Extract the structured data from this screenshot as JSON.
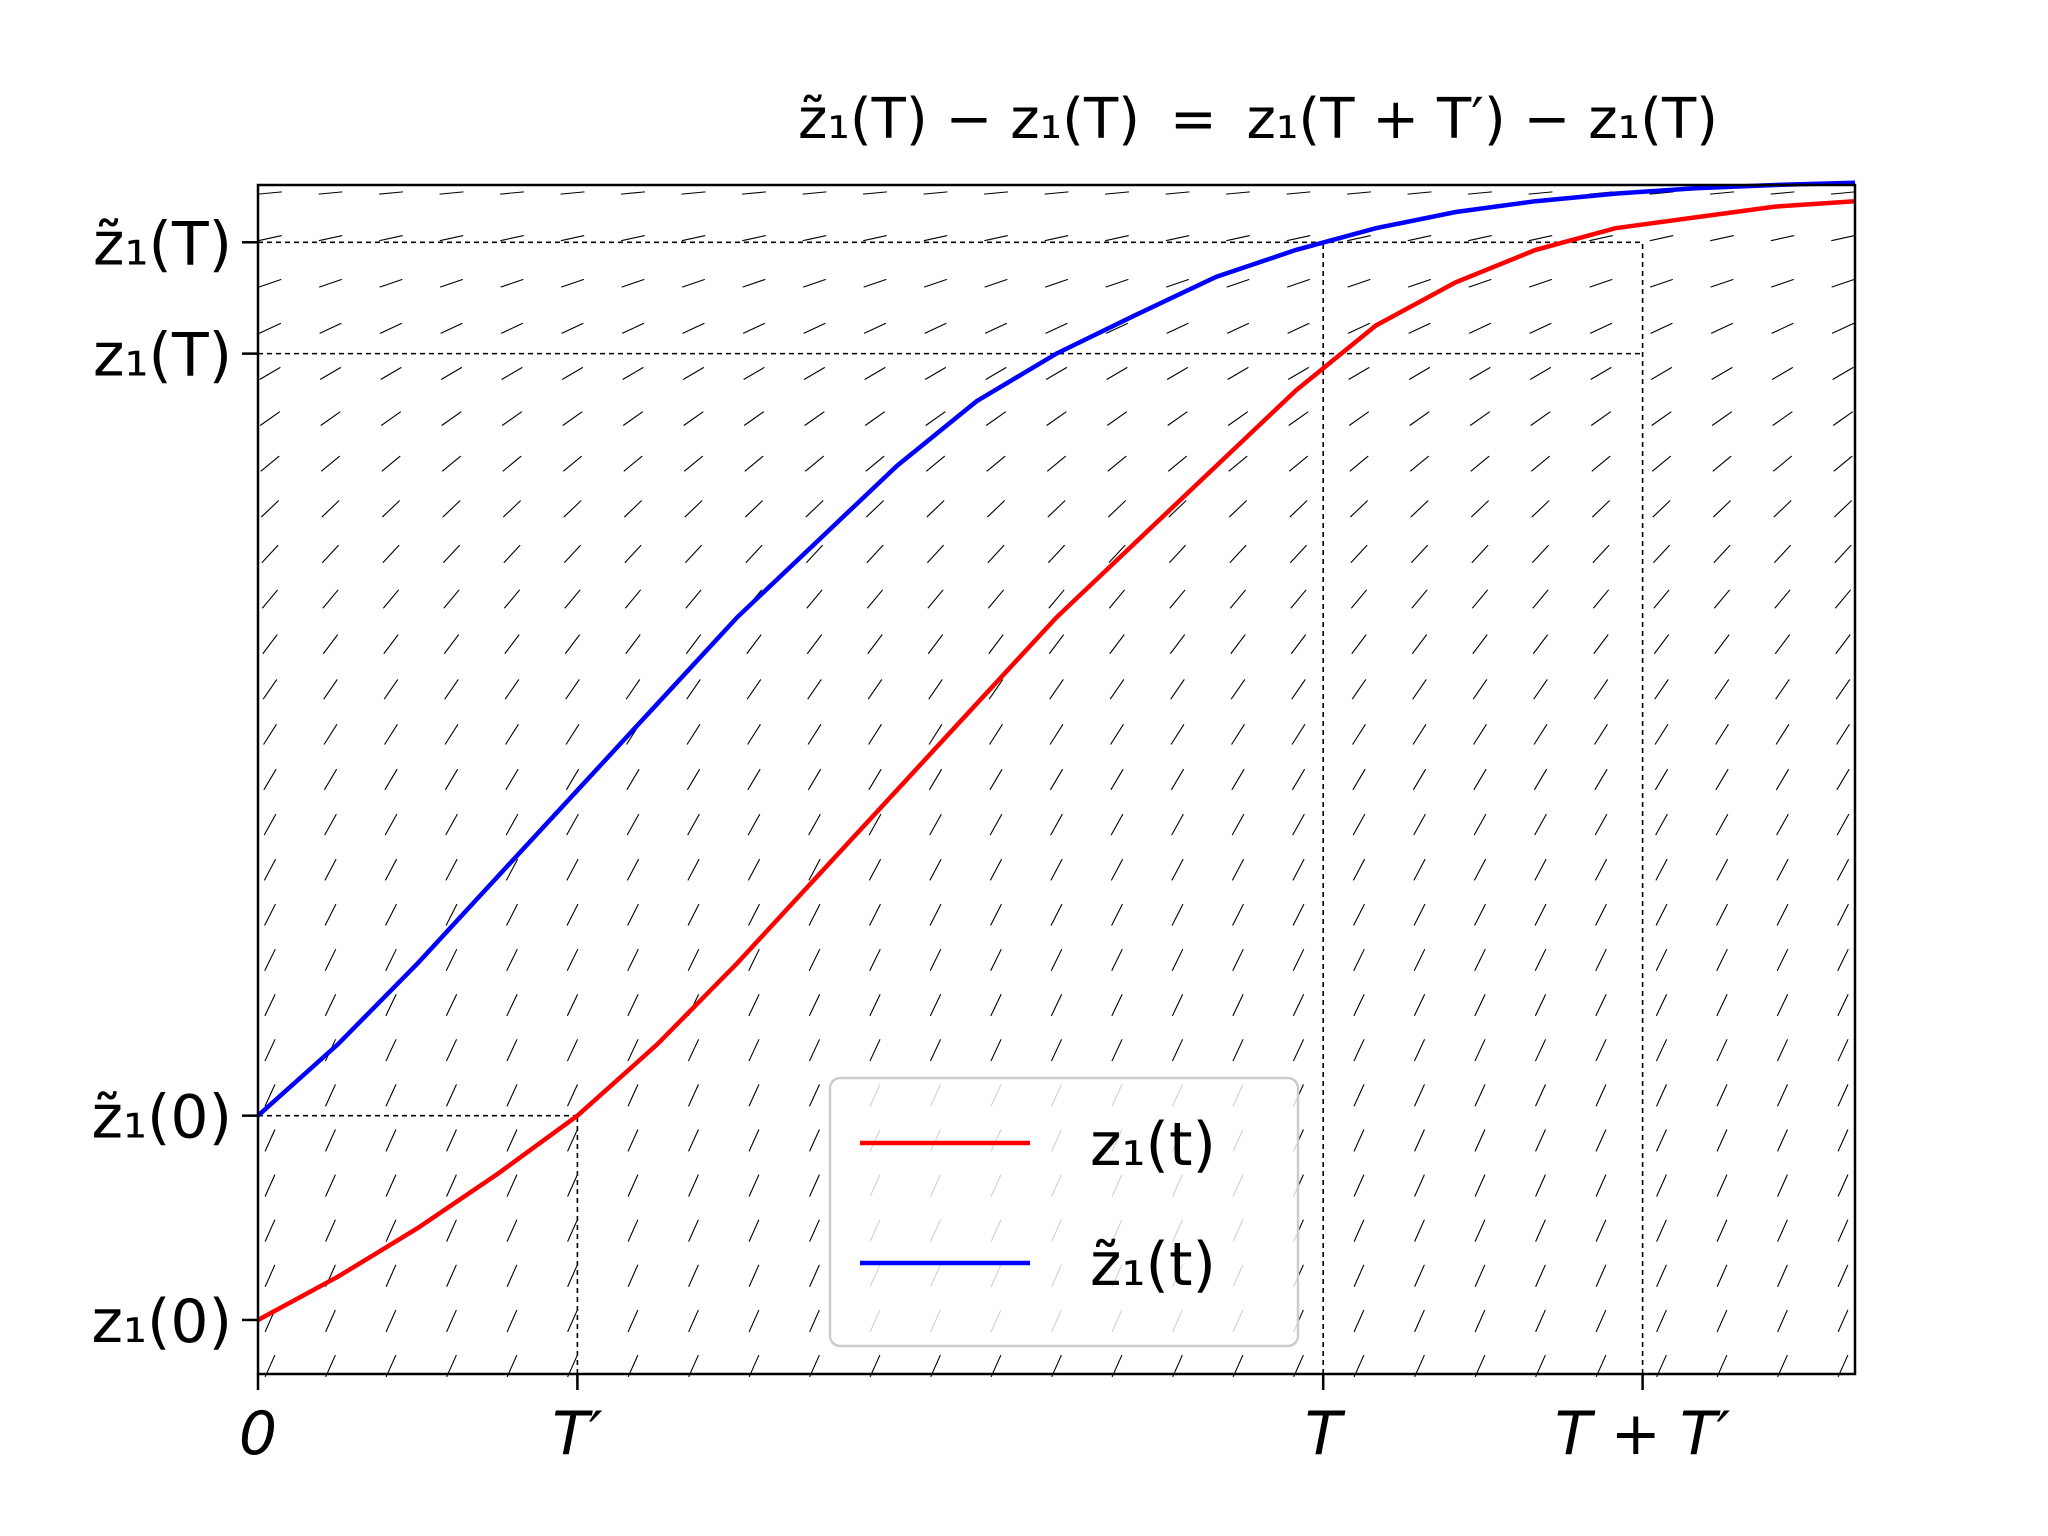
{
  "chart_data": {
    "type": "line",
    "title": "z̃₁(T) − z₁(T) = z₁(T + T′) − z₁(T)",
    "title_parts": {
      "lhs": "z̃₁(T) − z₁(T)",
      "equals": "=",
      "rhs": "z₁(T + T′) − z₁(T)"
    },
    "xlabel": "",
    "ylabel": "",
    "xlim": [
      0,
      1.0
    ],
    "ylim": [
      -0.05,
      1.05
    ],
    "x_ticks": [
      {
        "value": 0.0,
        "label": "0"
      },
      {
        "value": 0.2,
        "label": "T′"
      },
      {
        "value": 0.667,
        "label": "T"
      },
      {
        "value": 0.867,
        "label": "T + T′"
      }
    ],
    "y_ticks": [
      {
        "value": 0.0,
        "label": "z₁(0)"
      },
      {
        "value": 0.189,
        "label": "z̃₁(0)"
      },
      {
        "value": 0.894,
        "label": "z₁(T)"
      },
      {
        "value": 0.997,
        "label": "z̃₁(T)"
      }
    ],
    "series": [
      {
        "name": "z₁(t)",
        "color": "#ff0000",
        "x": [
          0.0,
          0.05,
          0.1,
          0.15,
          0.2,
          0.25,
          0.3,
          0.35,
          0.4,
          0.45,
          0.5,
          0.55,
          0.6,
          0.65,
          0.7,
          0.75,
          0.8,
          0.85,
          0.9,
          0.95,
          1.0
        ],
        "values": [
          0.0,
          0.04,
          0.085,
          0.135,
          0.189,
          0.255,
          0.33,
          0.41,
          0.49,
          0.57,
          0.65,
          0.72,
          0.79,
          0.86,
          0.92,
          0.96,
          0.99,
          1.01,
          1.02,
          1.03,
          1.035
        ]
      },
      {
        "name": "z̃₁(t)",
        "color": "#0000ff",
        "x": [
          0.0,
          0.05,
          0.1,
          0.15,
          0.2,
          0.25,
          0.3,
          0.35,
          0.4,
          0.45,
          0.5,
          0.55,
          0.6,
          0.65,
          0.7,
          0.75,
          0.8,
          0.85,
          0.9,
          0.95,
          1.0
        ],
        "values": [
          0.189,
          0.255,
          0.33,
          0.41,
          0.49,
          0.57,
          0.65,
          0.72,
          0.79,
          0.85,
          0.894,
          0.93,
          0.965,
          0.99,
          1.01,
          1.025,
          1.035,
          1.042,
          1.047,
          1.05,
          1.052
        ]
      }
    ],
    "reference_lines": [
      {
        "from": [
          0.0,
          0.189
        ],
        "to": [
          0.2,
          0.189
        ]
      },
      {
        "from": [
          0.2,
          -0.05
        ],
        "to": [
          0.2,
          0.189
        ]
      },
      {
        "from": [
          0.0,
          0.894
        ],
        "to": [
          0.867,
          0.894
        ]
      },
      {
        "from": [
          0.0,
          0.997
        ],
        "to": [
          0.867,
          0.997
        ]
      },
      {
        "from": [
          0.667,
          -0.05
        ],
        "to": [
          0.667,
          0.997
        ]
      },
      {
        "from": [
          0.867,
          -0.05
        ],
        "to": [
          0.867,
          0.997
        ]
      }
    ],
    "slope_field": true,
    "legend": {
      "placement": "lower-center",
      "entries": [
        {
          "label": "z₁(t)",
          "color": "#ff0000"
        },
        {
          "label": "z̃₁(t)",
          "color": "#0000ff"
        }
      ]
    },
    "grid": false
  }
}
